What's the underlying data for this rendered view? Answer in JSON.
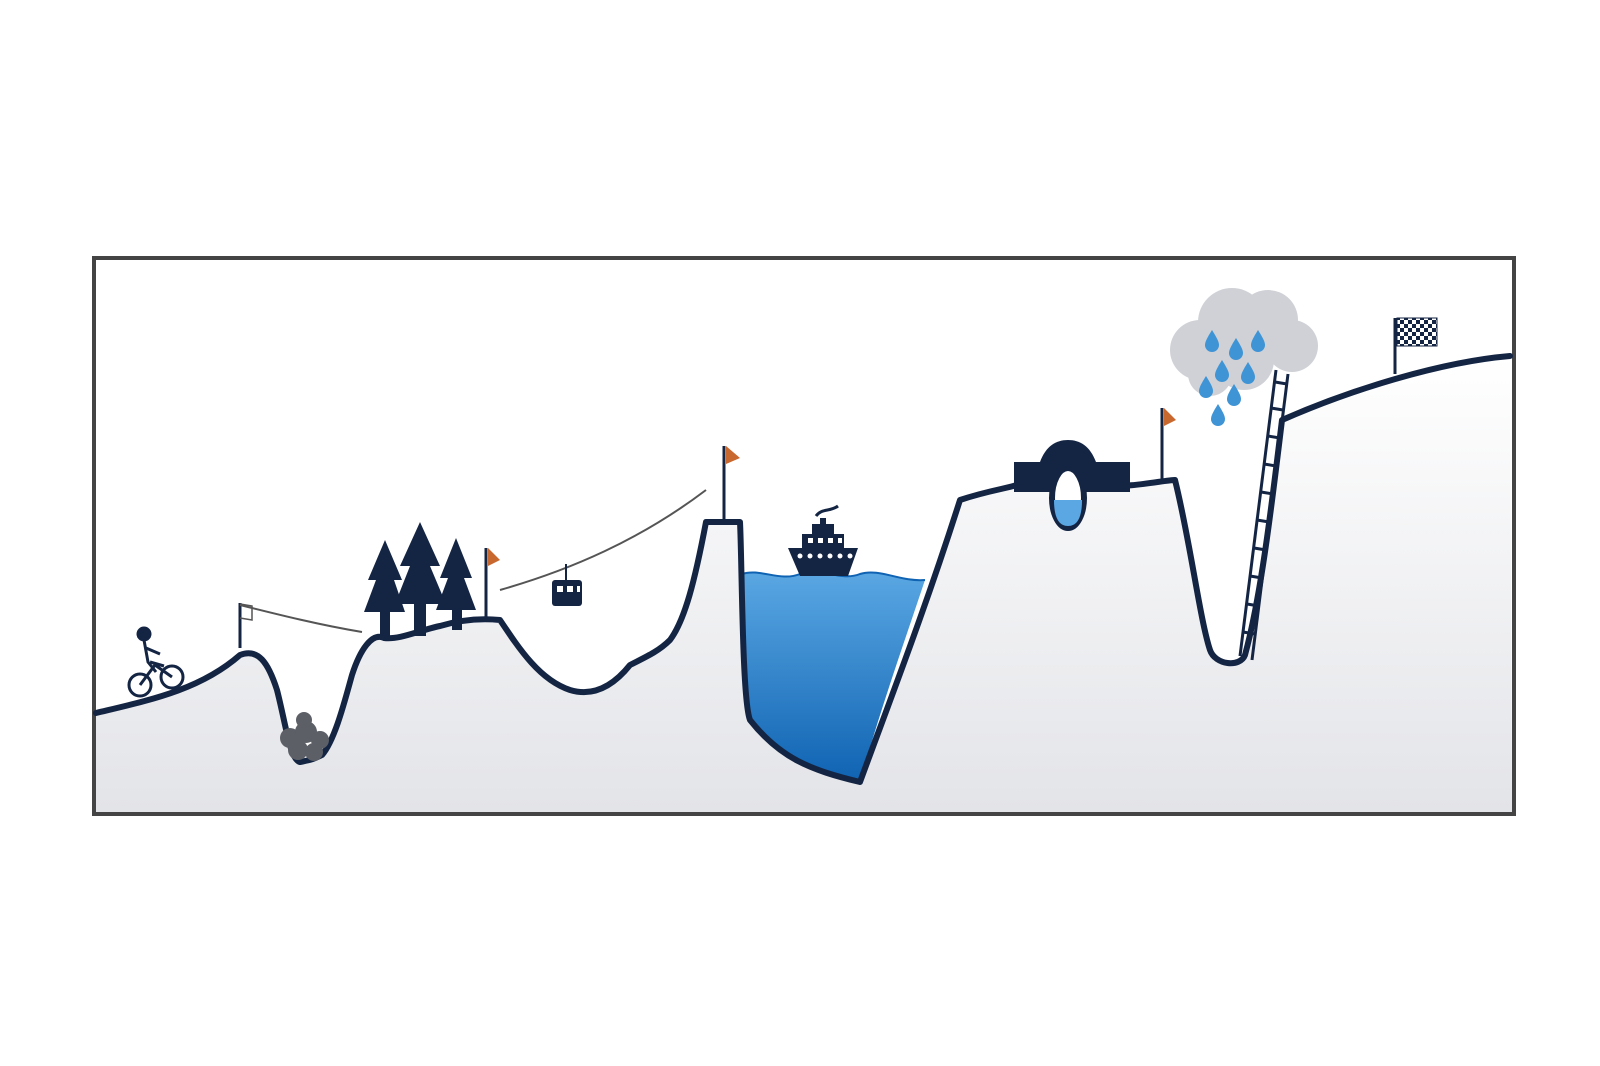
{
  "diagram": {
    "icons": [
      "cyclist-icon",
      "zipline-icon",
      "boulders-icon",
      "pine-trees-icon",
      "flag-icon",
      "cable-car-icon",
      "ship-icon",
      "bridge-icon",
      "rain-cloud-icon",
      "ladder-icon",
      "finish-flag-icon"
    ]
  },
  "colors": {
    "outline": "#142544",
    "ground_top": "#ffffff",
    "ground_bottom": "#e3e4e8",
    "water_top": "#5aa7e3",
    "water_bottom": "#0f63b2",
    "flag": "#c8672e",
    "cloud": "#cfd1d6",
    "rain": "#3f94d6",
    "frame": "#444444"
  }
}
